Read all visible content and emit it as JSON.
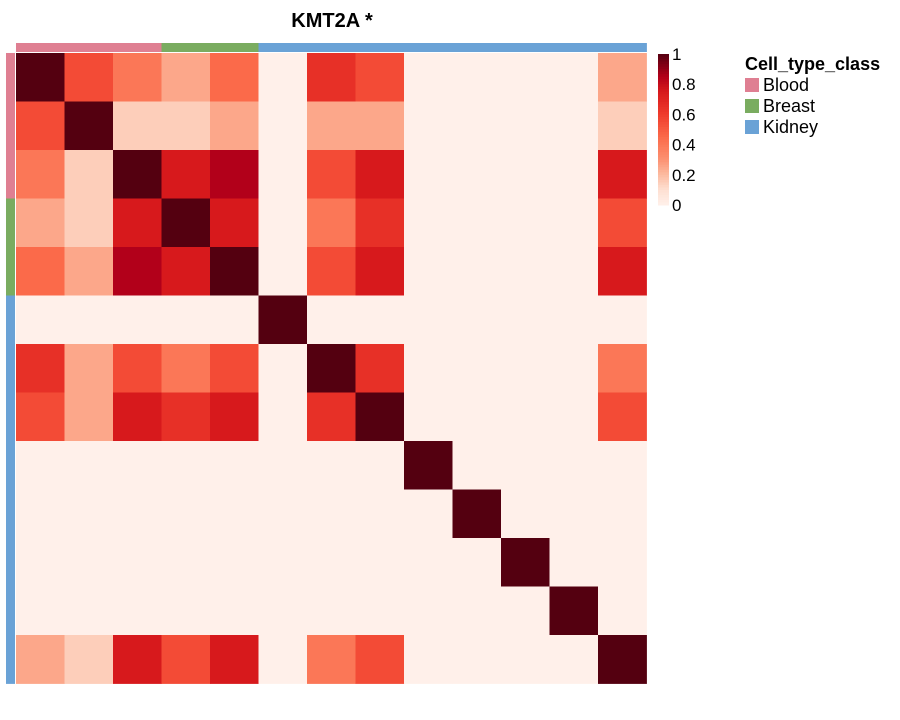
{
  "chart_data": {
    "type": "heatmap",
    "title": "KMT2A *",
    "n": 13,
    "values": [
      [
        1.0,
        0.55,
        0.4,
        0.25,
        0.45,
        0.0,
        0.65,
        0.55,
        0.0,
        0.0,
        0.0,
        0.0,
        0.25
      ],
      [
        0.55,
        1.0,
        0.15,
        0.15,
        0.25,
        0.0,
        0.25,
        0.25,
        0.0,
        0.0,
        0.0,
        0.0,
        0.15
      ],
      [
        0.4,
        0.15,
        1.0,
        0.75,
        0.85,
        0.0,
        0.55,
        0.75,
        0.0,
        0.0,
        0.0,
        0.0,
        0.75
      ],
      [
        0.25,
        0.15,
        0.75,
        1.0,
        0.75,
        0.0,
        0.4,
        0.65,
        0.0,
        0.0,
        0.0,
        0.0,
        0.55
      ],
      [
        0.45,
        0.25,
        0.85,
        0.75,
        1.0,
        0.0,
        0.55,
        0.75,
        0.0,
        0.0,
        0.0,
        0.0,
        0.75
      ],
      [
        0.0,
        0.0,
        0.0,
        0.0,
        0.0,
        1.0,
        0.0,
        0.0,
        0.0,
        0.0,
        0.0,
        0.0,
        0.0
      ],
      [
        0.65,
        0.25,
        0.55,
        0.4,
        0.55,
        0.0,
        1.0,
        0.65,
        0.0,
        0.0,
        0.0,
        0.0,
        0.4
      ],
      [
        0.55,
        0.25,
        0.75,
        0.65,
        0.75,
        0.0,
        0.65,
        1.0,
        0.0,
        0.0,
        0.0,
        0.0,
        0.55
      ],
      [
        0.0,
        0.0,
        0.0,
        0.0,
        0.0,
        0.0,
        0.0,
        0.0,
        1.0,
        0.0,
        0.0,
        0.0,
        0.0
      ],
      [
        0.0,
        0.0,
        0.0,
        0.0,
        0.0,
        0.0,
        0.0,
        0.0,
        0.0,
        1.0,
        0.0,
        0.0,
        0.0
      ],
      [
        0.0,
        0.0,
        0.0,
        0.0,
        0.0,
        0.0,
        0.0,
        0.0,
        0.0,
        0.0,
        1.0,
        0.0,
        0.0
      ],
      [
        0.0,
        0.0,
        0.0,
        0.0,
        0.0,
        0.0,
        0.0,
        0.0,
        0.0,
        0.0,
        0.0,
        1.0,
        0.0
      ],
      [
        0.25,
        0.15,
        0.75,
        0.55,
        0.75,
        0.0,
        0.4,
        0.55,
        0.0,
        0.0,
        0.0,
        0.0,
        1.0
      ]
    ],
    "cell_classes": [
      "Blood",
      "Blood",
      "Blood",
      "Breast",
      "Breast",
      "Kidney",
      "Kidney",
      "Kidney",
      "Kidney",
      "Kidney",
      "Kidney",
      "Kidney",
      "Kidney"
    ],
    "color_scale": {
      "min": 0,
      "max": 1,
      "ticks": [
        "1",
        "0.8",
        "0.6",
        "0.4",
        "0.2",
        "0"
      ],
      "tick_values": [
        1,
        0.8,
        0.6,
        0.4,
        0.2,
        0
      ],
      "stops": [
        {
          "value": 0.0,
          "color": "#fff0ea"
        },
        {
          "value": 0.1,
          "color": "#fee0d2"
        },
        {
          "value": 0.2,
          "color": "#fcbba1"
        },
        {
          "value": 0.3,
          "color": "#fc9272"
        },
        {
          "value": 0.45,
          "color": "#fb6a4a"
        },
        {
          "value": 0.6,
          "color": "#ef3b2c"
        },
        {
          "value": 0.75,
          "color": "#d7191c"
        },
        {
          "value": 0.85,
          "color": "#b2001a"
        },
        {
          "value": 1.0,
          "color": "#540010"
        }
      ]
    },
    "legend": {
      "title": "Cell_type_class",
      "entries": [
        {
          "label": "Blood",
          "color": "#df7f92"
        },
        {
          "label": "Breast",
          "color": "#7aac60"
        },
        {
          "label": "Kidney",
          "color": "#6aa2d6"
        }
      ]
    }
  }
}
